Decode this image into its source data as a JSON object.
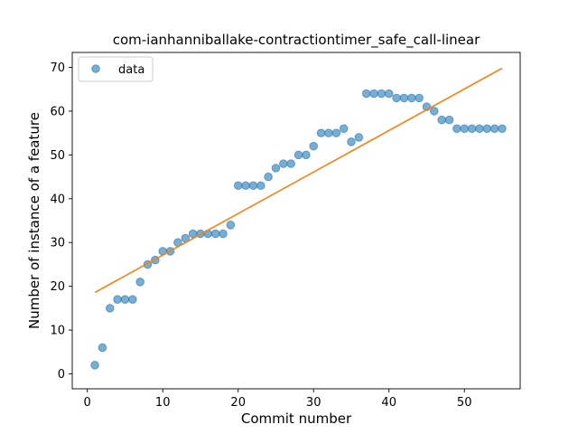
{
  "chart_data": {
    "type": "scatter",
    "title": "com-ianhanniballake-contractiontimer_safe_call-linear",
    "xlabel": "Commit number",
    "ylabel": "Number of instance of a feature",
    "xlim": [
      -2,
      57.4
    ],
    "ylim": [
      -3.4,
      73.4
    ],
    "xticks": [
      0,
      10,
      20,
      30,
      40,
      50
    ],
    "yticks": [
      0,
      10,
      20,
      30,
      40,
      50,
      60,
      70
    ],
    "grid": false,
    "legend": {
      "placement": "upper-left",
      "entries": [
        "data"
      ]
    },
    "colors": {
      "data": "#1f77b4",
      "fit": "#ff7f0e"
    },
    "series": [
      {
        "name": "data",
        "kind": "scatter",
        "x": [
          1,
          2,
          3,
          4,
          5,
          6,
          7,
          8,
          9,
          10,
          11,
          12,
          13,
          14,
          15,
          16,
          17,
          18,
          19,
          20,
          21,
          22,
          23,
          24,
          25,
          26,
          27,
          28,
          29,
          30,
          31,
          32,
          33,
          34,
          35,
          36,
          37,
          38,
          39,
          40,
          41,
          42,
          43,
          44,
          45,
          46,
          47,
          48,
          49,
          50,
          51,
          52,
          53,
          54,
          55
        ],
        "y": [
          2,
          6,
          15,
          17,
          17,
          17,
          21,
          25,
          26,
          28,
          28,
          30,
          31,
          32,
          32,
          32,
          32,
          32,
          34,
          43,
          43,
          43,
          43,
          45,
          47,
          48,
          48,
          50,
          50,
          52,
          55,
          55,
          55,
          56,
          53,
          54,
          64,
          64,
          64,
          64,
          63,
          63,
          63,
          63,
          61,
          60,
          58,
          58,
          56,
          56,
          56,
          56,
          56,
          56,
          56
        ]
      },
      {
        "kind": "line",
        "x": [
          1,
          55
        ],
        "y": [
          18.6,
          69.8
        ]
      }
    ]
  }
}
